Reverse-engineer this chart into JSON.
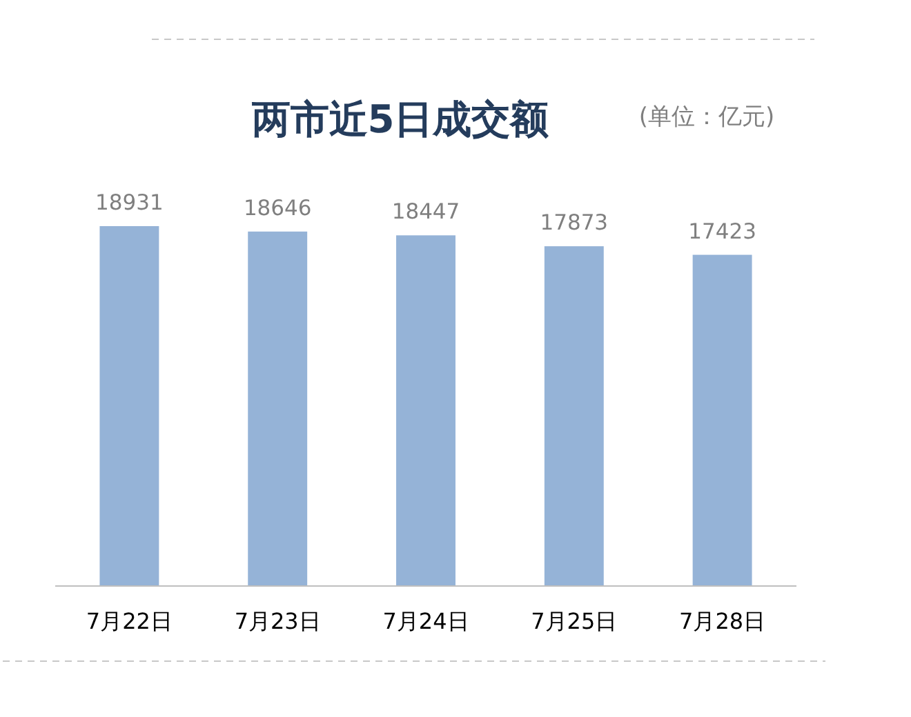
{
  "chart_data": {
    "type": "bar",
    "title": "两市近5日成交额",
    "subtitle": "(单位：亿元)",
    "categories": [
      "7月22日",
      "7月23日",
      "7月24日",
      "7月25日",
      "7月28日"
    ],
    "values": [
      18931,
      18646,
      18447,
      17873,
      17423
    ],
    "color": "#95b3d7",
    "tick_labels": "x",
    "data_labels": true
  }
}
